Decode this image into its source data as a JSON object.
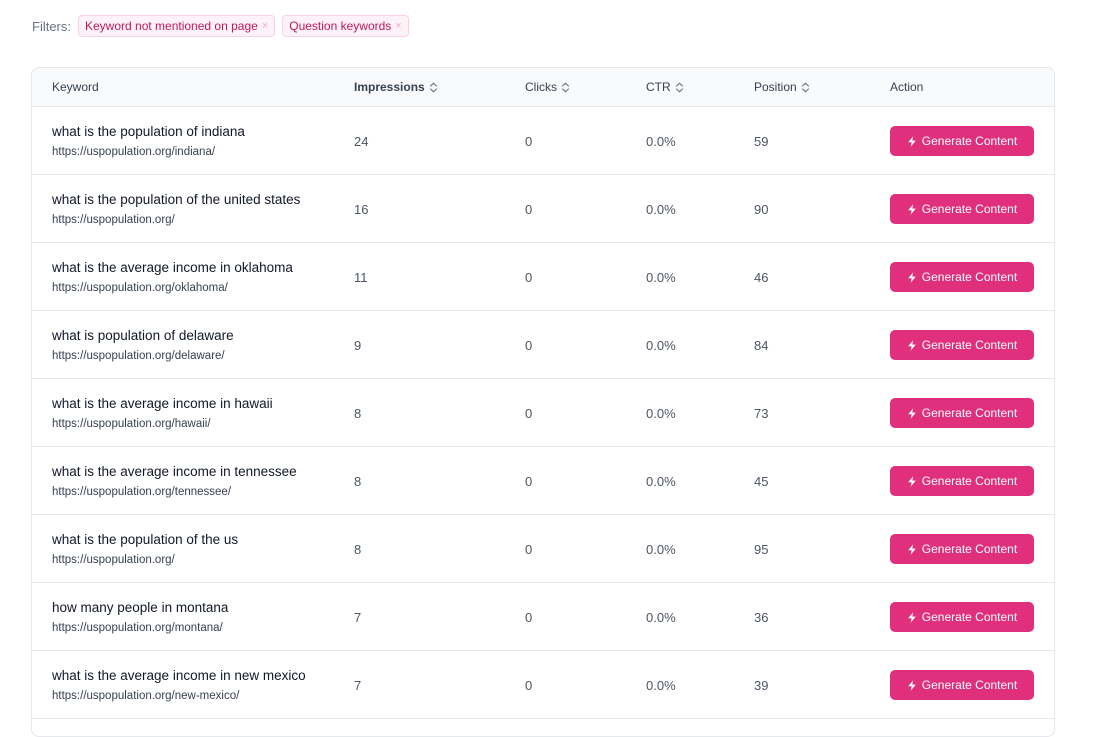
{
  "filters": {
    "label": "Filters:",
    "chips": [
      {
        "label": "Keyword not mentioned on page",
        "remove": "×"
      },
      {
        "label": "Question keywords",
        "remove": "×"
      }
    ]
  },
  "table": {
    "headers": {
      "keyword": "Keyword",
      "impressions": "Impressions",
      "clicks": "Clicks",
      "ctr": "CTR",
      "position": "Position",
      "action": "Action"
    },
    "button_label": "Generate Content",
    "rows": [
      {
        "keyword": "what is the population of indiana",
        "url": "https://uspopulation.org/indiana/",
        "impressions": "24",
        "clicks": "0",
        "ctr": "0.0%",
        "position": "59"
      },
      {
        "keyword": "what is the population of the united states",
        "url": "https://uspopulation.org/",
        "impressions": "16",
        "clicks": "0",
        "ctr": "0.0%",
        "position": "90"
      },
      {
        "keyword": "what is the average income in oklahoma",
        "url": "https://uspopulation.org/oklahoma/",
        "impressions": "11",
        "clicks": "0",
        "ctr": "0.0%",
        "position": "46"
      },
      {
        "keyword": "what is population of delaware",
        "url": "https://uspopulation.org/delaware/",
        "impressions": "9",
        "clicks": "0",
        "ctr": "0.0%",
        "position": "84"
      },
      {
        "keyword": "what is the average income in hawaii",
        "url": "https://uspopulation.org/hawaii/",
        "impressions": "8",
        "clicks": "0",
        "ctr": "0.0%",
        "position": "73"
      },
      {
        "keyword": "what is the average income in tennessee",
        "url": "https://uspopulation.org/tennessee/",
        "impressions": "8",
        "clicks": "0",
        "ctr": "0.0%",
        "position": "45"
      },
      {
        "keyword": "what is the population of the us",
        "url": "https://uspopulation.org/",
        "impressions": "8",
        "clicks": "0",
        "ctr": "0.0%",
        "position": "95"
      },
      {
        "keyword": "how many people in montana",
        "url": "https://uspopulation.org/montana/",
        "impressions": "7",
        "clicks": "0",
        "ctr": "0.0%",
        "position": "36"
      },
      {
        "keyword": "what is the average income in new mexico",
        "url": "https://uspopulation.org/new-mexico/",
        "impressions": "7",
        "clicks": "0",
        "ctr": "0.0%",
        "position": "39"
      }
    ]
  },
  "colors": {
    "accent": "#e0307d",
    "chip_bg": "#fdf2f8",
    "chip_text": "#be185d"
  },
  "icons": {
    "sort": "chevron-up-down-icon",
    "button": "lightning-bolt-icon",
    "chip_remove": "close-icon"
  }
}
